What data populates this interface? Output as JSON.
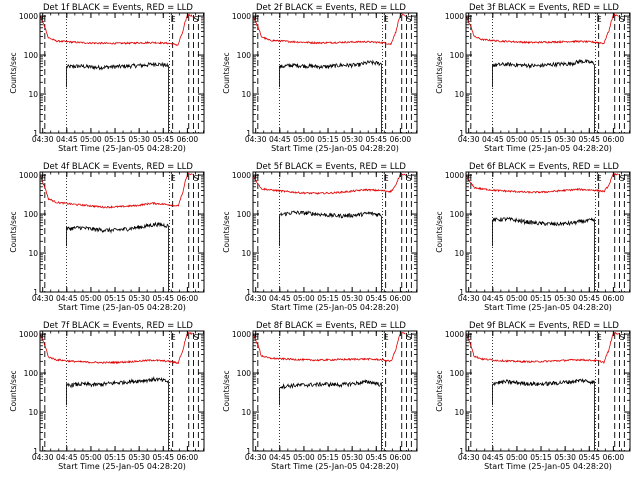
{
  "figure": {
    "x_axis": {
      "label": "Start Time (25-Jan-05 04:28:20)",
      "tick_labels": [
        "04:30",
        "04:45",
        "05:00",
        "05:15",
        "05:30",
        "05:45",
        "06:00"
      ],
      "tick_minutes": [
        1.67,
        16.67,
        31.67,
        46.67,
        61.67,
        76.67,
        91.67
      ],
      "range_minutes": [
        0,
        102
      ]
    },
    "y_axis": {
      "label": "Counts/sec",
      "scale": "log",
      "range": [
        1,
        1200
      ],
      "tick_labels": [
        "1",
        "10",
        "100",
        "1000"
      ],
      "tick_values": [
        1,
        10,
        100,
        1000
      ]
    },
    "colors": {
      "events": "#000000",
      "lld": "#e00000",
      "axes": "#000000"
    },
    "markers": {
      "dotted_minutes": [
        16.5,
        80.5
      ],
      "dashed_minutes": [
        3.0,
        82.5,
        92.5,
        95.5,
        98.5
      ],
      "label_E": "E",
      "label_S": "S"
    }
  },
  "chart_data": [
    {
      "type": "line",
      "title": "Det 1f BLACK = Events, RED = LLD",
      "series": [
        {
          "name": "Events",
          "color": "#000000",
          "x": [
            16.5,
            25,
            35,
            45,
            55,
            65,
            72,
            78,
            80
          ],
          "y": [
            50,
            52,
            48,
            50,
            52,
            55,
            60,
            55,
            52
          ]
        },
        {
          "name": "LLD",
          "color": "#e00000",
          "x": [
            0,
            2,
            5,
            10,
            20,
            30,
            40,
            50,
            60,
            70,
            80,
            86,
            89,
            92,
            95
          ],
          "y": [
            1000,
            650,
            280,
            230,
            215,
            205,
            200,
            200,
            205,
            210,
            200,
            180,
            400,
            1100,
            1000
          ]
        }
      ]
    },
    {
      "type": "line",
      "title": "Det 2f BLACK = Events, RED = LLD",
      "series": [
        {
          "name": "Events",
          "color": "#000000",
          "x": [
            16.5,
            25,
            35,
            45,
            55,
            65,
            72,
            80
          ],
          "y": [
            50,
            55,
            52,
            50,
            55,
            55,
            65,
            60
          ]
        },
        {
          "name": "LLD",
          "color": "#e00000",
          "x": [
            0,
            2,
            5,
            10,
            20,
            30,
            40,
            50,
            60,
            70,
            80,
            86,
            89,
            92,
            95
          ],
          "y": [
            1000,
            650,
            300,
            240,
            225,
            215,
            205,
            210,
            215,
            220,
            210,
            190,
            400,
            1100,
            1000
          ]
        }
      ]
    },
    {
      "type": "line",
      "title": "Det 3f BLACK = Events, RED = LLD",
      "series": [
        {
          "name": "Events",
          "color": "#000000",
          "x": [
            16.5,
            25,
            35,
            45,
            55,
            65,
            72,
            80
          ],
          "y": [
            55,
            58,
            55,
            53,
            58,
            60,
            70,
            62
          ]
        },
        {
          "name": "LLD",
          "color": "#e00000",
          "x": [
            0,
            2,
            5,
            10,
            20,
            30,
            40,
            50,
            60,
            70,
            80,
            86,
            89,
            92,
            95
          ],
          "y": [
            1000,
            650,
            300,
            250,
            230,
            220,
            210,
            215,
            220,
            225,
            215,
            200,
            420,
            1100,
            1000
          ]
        }
      ]
    },
    {
      "type": "line",
      "title": "Det 4f BLACK = Events, RED = LLD",
      "series": [
        {
          "name": "Events",
          "color": "#000000",
          "x": [
            16.5,
            25,
            35,
            45,
            55,
            65,
            72,
            80
          ],
          "y": [
            42,
            45,
            40,
            38,
            42,
            48,
            55,
            50
          ]
        },
        {
          "name": "LLD",
          "color": "#e00000",
          "x": [
            0,
            2,
            5,
            10,
            20,
            30,
            40,
            50,
            60,
            70,
            80,
            86,
            89,
            92,
            95
          ],
          "y": [
            1000,
            600,
            250,
            200,
            180,
            165,
            150,
            155,
            165,
            190,
            175,
            160,
            350,
            1100,
            1000
          ]
        }
      ]
    },
    {
      "type": "line",
      "title": "Det 5f BLACK = Events, RED = LLD",
      "series": [
        {
          "name": "Events",
          "color": "#000000",
          "x": [
            16.5,
            25,
            35,
            45,
            55,
            65,
            72,
            80
          ],
          "y": [
            95,
            110,
            105,
            95,
            90,
            95,
            105,
            95
          ]
        },
        {
          "name": "LLD",
          "color": "#e00000",
          "x": [
            0,
            2,
            5,
            10,
            20,
            30,
            40,
            50,
            60,
            70,
            80,
            86,
            89,
            92,
            95
          ],
          "y": [
            1000,
            700,
            450,
            420,
            380,
            350,
            340,
            350,
            380,
            420,
            400,
            380,
            550,
            1100,
            1000
          ]
        }
      ]
    },
    {
      "type": "line",
      "title": "Det 6f BLACK = Events, RED = LLD",
      "series": [
        {
          "name": "Events",
          "color": "#000000",
          "x": [
            16.5,
            25,
            35,
            45,
            55,
            65,
            72,
            80
          ],
          "y": [
            70,
            75,
            65,
            58,
            55,
            58,
            65,
            70
          ]
        },
        {
          "name": "LLD",
          "color": "#e00000",
          "x": [
            0,
            2,
            5,
            10,
            20,
            30,
            40,
            50,
            60,
            70,
            80,
            86,
            89,
            92,
            95
          ],
          "y": [
            1000,
            700,
            480,
            440,
            400,
            380,
            360,
            370,
            400,
            430,
            410,
            380,
            550,
            1100,
            1000
          ]
        }
      ]
    },
    {
      "type": "line",
      "title": "Det 7f BLACK = Events, RED = LLD",
      "series": [
        {
          "name": "Events",
          "color": "#000000",
          "x": [
            16.5,
            25,
            35,
            45,
            55,
            65,
            72,
            80
          ],
          "y": [
            48,
            52,
            50,
            55,
            60,
            65,
            70,
            60
          ]
        },
        {
          "name": "LLD",
          "color": "#e00000",
          "x": [
            0,
            2,
            5,
            10,
            20,
            30,
            40,
            50,
            60,
            70,
            80,
            86,
            89,
            92,
            95
          ],
          "y": [
            1000,
            650,
            260,
            220,
            200,
            190,
            185,
            190,
            200,
            215,
            200,
            180,
            380,
            1100,
            1000
          ]
        }
      ]
    },
    {
      "type": "line",
      "title": "Det 8f BLACK = Events, RED = LLD",
      "series": [
        {
          "name": "Events",
          "color": "#000000",
          "x": [
            16.5,
            25,
            35,
            45,
            55,
            65,
            72,
            80
          ],
          "y": [
            45,
            48,
            50,
            52,
            50,
            55,
            60,
            50
          ]
        },
        {
          "name": "LLD",
          "color": "#e00000",
          "x": [
            0,
            2,
            5,
            10,
            20,
            30,
            40,
            50,
            60,
            70,
            80,
            86,
            89,
            92,
            95
          ],
          "y": [
            1000,
            650,
            280,
            240,
            230,
            220,
            215,
            220,
            225,
            230,
            220,
            200,
            400,
            1100,
            1000
          ]
        }
      ]
    },
    {
      "type": "line",
      "title": "Det 9f BLACK = Events, RED = LLD",
      "series": [
        {
          "name": "Events",
          "color": "#000000",
          "x": [
            16.5,
            25,
            35,
            45,
            55,
            65,
            72,
            80
          ],
          "y": [
            55,
            60,
            55,
            52,
            55,
            60,
            65,
            58
          ]
        },
        {
          "name": "LLD",
          "color": "#e00000",
          "x": [
            0,
            2,
            5,
            10,
            20,
            30,
            40,
            50,
            60,
            70,
            80,
            86,
            89,
            92,
            95
          ],
          "y": [
            1000,
            650,
            270,
            230,
            210,
            200,
            195,
            200,
            210,
            220,
            210,
            190,
            390,
            1100,
            1000
          ]
        }
      ]
    }
  ]
}
